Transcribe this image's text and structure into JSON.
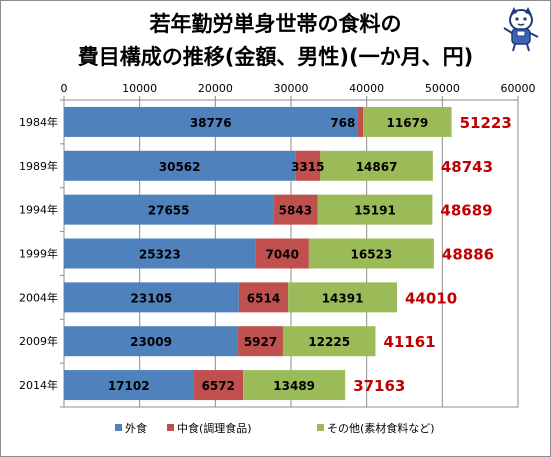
{
  "chart_data": {
    "type": "bar",
    "orientation": "horizontal",
    "stacked": true,
    "title_lines": [
      "若年勤労単身世帯の食料の",
      "費目構成の推移(金額、男性)(一か月、円)"
    ],
    "categories": [
      "1984年",
      "1989年",
      "1994年",
      "1999年",
      "2004年",
      "2009年",
      "2014年"
    ],
    "series": [
      {
        "name": "外食",
        "color": "#4f81bd",
        "values": [
          38776,
          30562,
          27655,
          25323,
          23105,
          23009,
          17102
        ]
      },
      {
        "name": "中食(調理食品)",
        "color": "#c0504d",
        "values": [
          768,
          3315,
          5843,
          7040,
          6514,
          5927,
          6572
        ]
      },
      {
        "name": "その他(素材食料など)",
        "color": "#9bbb59",
        "values": [
          11679,
          14867,
          15191,
          16523,
          14391,
          12225,
          13489
        ]
      }
    ],
    "totals": [
      51223,
      48743,
      48689,
      48886,
      44010,
      41161,
      37163
    ],
    "xlim": [
      0,
      60000
    ],
    "xticks": [
      "0",
      "10000",
      "20000",
      "30000",
      "40000",
      "50000",
      "60000"
    ],
    "x_axis_position": "top",
    "grid": true,
    "legend_position": "bottom",
    "total_label_color": "#c00000"
  }
}
